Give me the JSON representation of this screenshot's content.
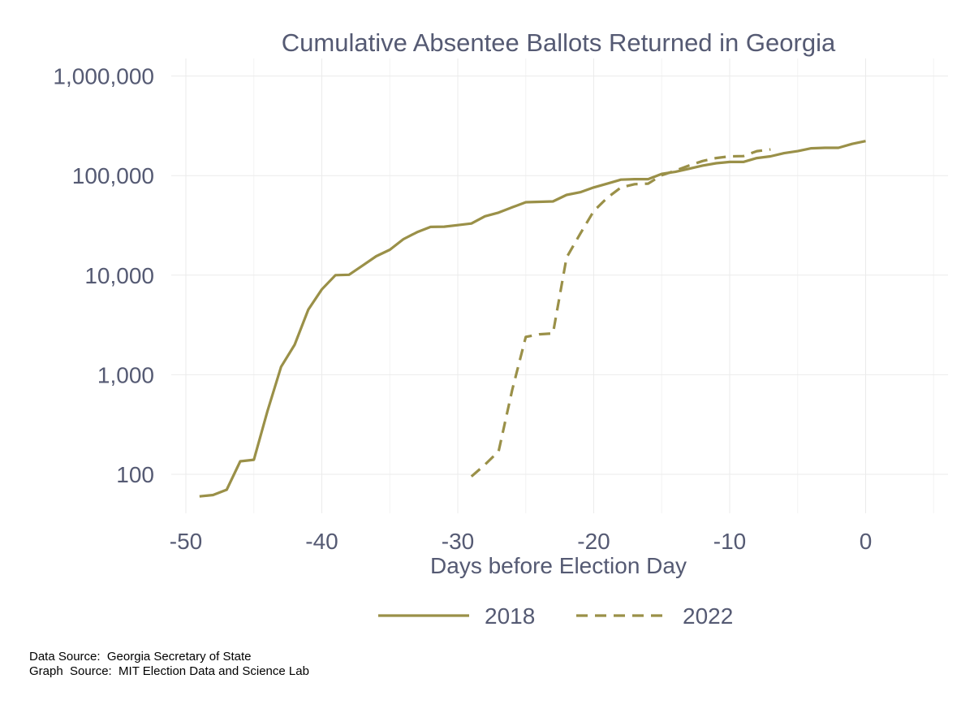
{
  "chart_data": {
    "type": "line",
    "title": "Cumulative Absentee Ballots Returned in Georgia",
    "xlabel": "Days before Election Day",
    "ylabel": "",
    "xlim": [
      -50,
      5
    ],
    "x_ticks": [
      -50,
      -40,
      -30,
      -20,
      -10,
      0
    ],
    "x_tick_labels": [
      "-50",
      "-40",
      "-30",
      "-20",
      "-10",
      "0"
    ],
    "y_scale": "log10",
    "ylim": [
      40,
      1200000
    ],
    "y_ticks": [
      100,
      1000,
      10000,
      100000,
      1000000
    ],
    "y_tick_labels": [
      "100",
      "1,000",
      "10,000",
      "100,000",
      "1,000,000"
    ],
    "color": "#9a9048",
    "grid": true,
    "legend_position": "bottom",
    "series": [
      {
        "name": "2018",
        "style": "solid",
        "x": [
          -49,
          -48,
          -47,
          -46,
          -45,
          -44,
          -43,
          -42,
          -41,
          -40,
          -39,
          -38,
          -37,
          -36,
          -35,
          -34,
          -33,
          -32,
          -31,
          -30,
          -29,
          -28,
          -27,
          -26,
          -25,
          -24,
          -23,
          -22,
          -21,
          -20,
          -19,
          -18,
          -17,
          -16,
          -15,
          -14,
          -13,
          -12,
          -11,
          -10,
          -9,
          -8,
          -7,
          -6,
          -5,
          -4,
          -3,
          -2,
          -1,
          0
        ],
        "values": [
          60,
          62,
          70,
          135,
          140,
          430,
          1200,
          2000,
          4500,
          7200,
          10000,
          10100,
          12500,
          15500,
          18000,
          23000,
          27000,
          30500,
          30700,
          31800,
          33000,
          39000,
          42500,
          48000,
          54000,
          54500,
          55000,
          64000,
          68000,
          76000,
          83000,
          91000,
          92000,
          92000,
          104000,
          109000,
          117000,
          126000,
          133000,
          137000,
          137000,
          150000,
          156000,
          168000,
          176000,
          188000,
          190000,
          190000,
          208000,
          222000
        ]
      },
      {
        "name": "2022",
        "style": "dashed",
        "x": [
          -29,
          -28,
          -27,
          -26,
          -25,
          -24,
          -23,
          -22,
          -21,
          -20,
          -19,
          -18,
          -17,
          -16,
          -15,
          -14,
          -13,
          -12,
          -11,
          -10,
          -9,
          -8,
          -7
        ],
        "values": [
          95,
          125,
          170,
          700,
          2400,
          2550,
          2600,
          15000,
          26000,
          44000,
          60000,
          76000,
          82000,
          83000,
          101000,
          112000,
          126000,
          140000,
          150000,
          156000,
          157000,
          176000,
          183000
        ]
      }
    ],
    "footnotes": [
      "Data Source:  Georgia Secretary of State",
      "Graph  Source:  MIT Election Data and Science Lab"
    ]
  }
}
